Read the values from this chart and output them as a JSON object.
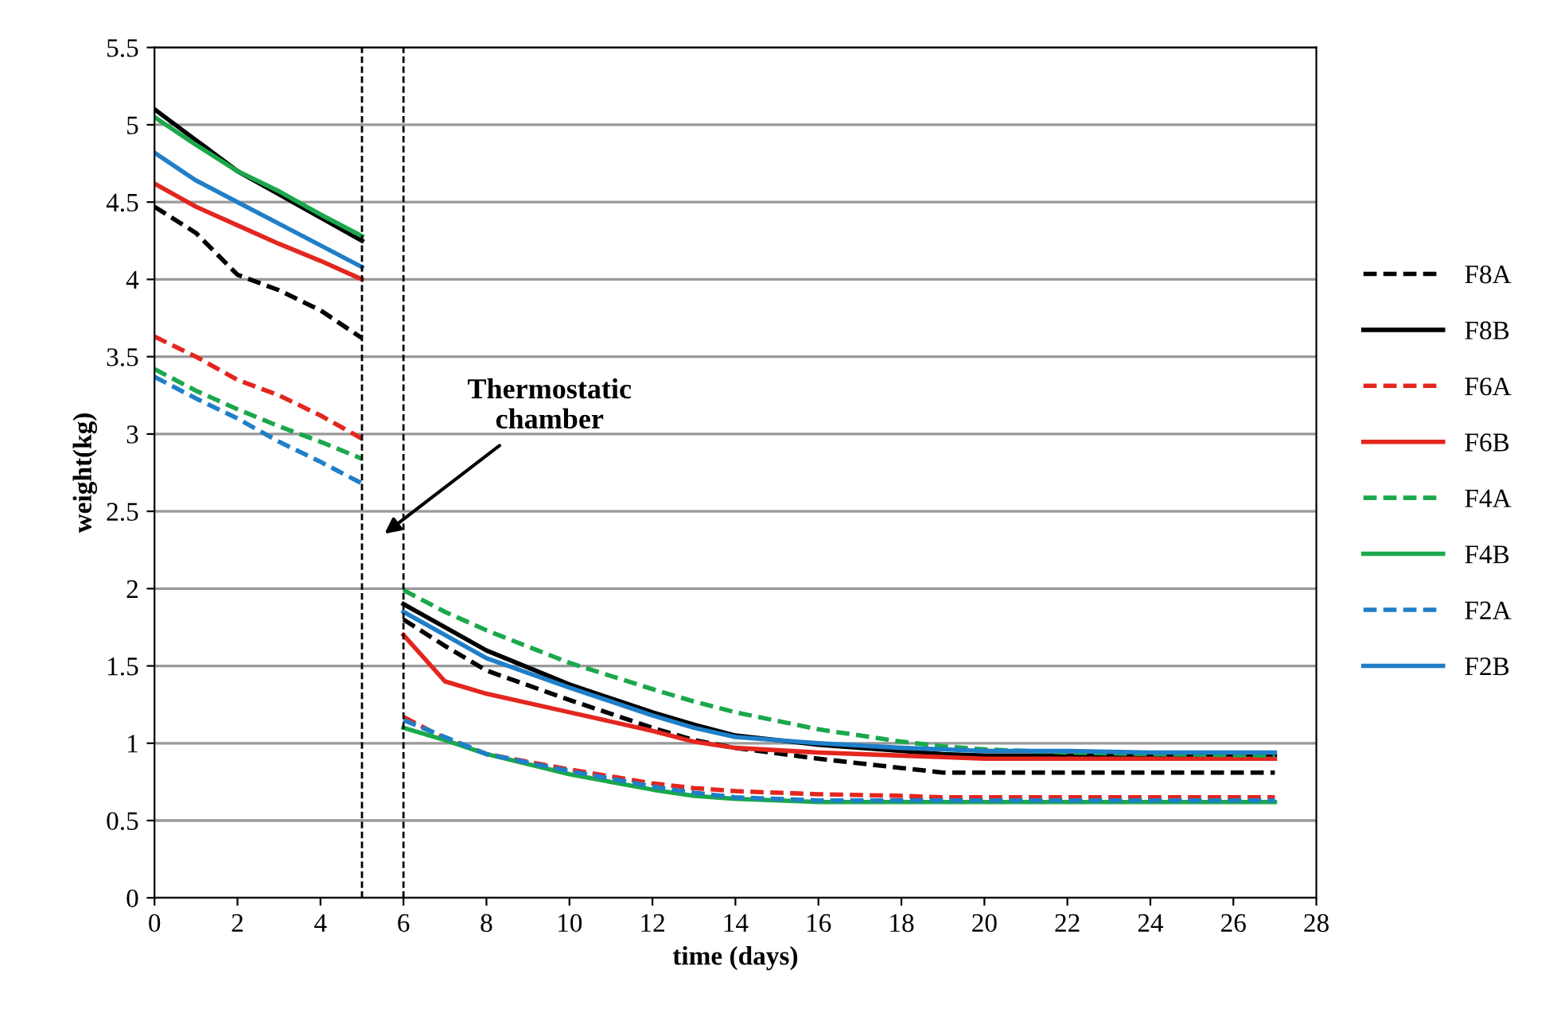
{
  "chart_data": {
    "type": "line",
    "xlabel": "time (days)",
    "ylabel": "weight(kg)",
    "x": [
      0,
      1,
      2,
      3,
      4,
      5,
      5.5,
      6,
      7,
      8,
      10,
      12,
      13,
      14,
      16,
      18,
      19,
      20,
      22,
      24,
      27
    ],
    "xlim": [
      0,
      28
    ],
    "xticks": [
      0,
      2,
      4,
      6,
      8,
      10,
      12,
      14,
      16,
      18,
      20,
      22,
      24,
      26,
      28
    ],
    "ylim": [
      0,
      5.5
    ],
    "yticks": [
      0,
      0.5,
      1,
      1.5,
      2,
      2.5,
      3,
      3.5,
      4,
      4.5,
      5,
      5.5
    ],
    "grid": "y",
    "legend": "right",
    "marker": "none",
    "ref_lines": [
      {
        "axis": "x",
        "value": 5,
        "color": "#000000",
        "line_style": "dashed"
      },
      {
        "axis": "x",
        "value": 6,
        "color": "#000000",
        "line_style": "dashed"
      }
    ],
    "annotations": [
      "Thermostatic\nchamber"
    ],
    "series": [
      {
        "name": "F8A",
        "color": "#000000",
        "line_style": "dashed",
        "values": [
          4.47,
          4.3,
          4.03,
          3.93,
          3.8,
          3.62,
          null,
          1.8,
          1.63,
          1.47,
          1.28,
          1.1,
          1.02,
          0.97,
          0.9,
          0.84,
          0.81,
          0.81,
          0.81,
          0.81,
          0.81
        ]
      },
      {
        "name": "F8B",
        "color": "#000000",
        "line_style": "solid",
        "values": [
          5.1,
          4.9,
          4.7,
          4.55,
          4.4,
          4.25,
          null,
          1.9,
          1.75,
          1.6,
          1.38,
          1.2,
          1.12,
          1.05,
          0.99,
          0.95,
          0.93,
          0.92,
          0.92,
          0.92,
          0.92
        ]
      },
      {
        "name": "F6A",
        "color": "#e3261f",
        "line_style": "dashed",
        "values": [
          3.63,
          3.5,
          3.35,
          3.25,
          3.12,
          2.97,
          null,
          1.17,
          1.03,
          0.93,
          0.83,
          0.74,
          0.71,
          0.69,
          0.67,
          0.66,
          0.65,
          0.65,
          0.65,
          0.65,
          0.65
        ]
      },
      {
        "name": "F6B",
        "color": "#e3261f",
        "line_style": "solid",
        "values": [
          4.62,
          4.47,
          4.35,
          4.23,
          4.12,
          4.0,
          null,
          1.7,
          1.4,
          1.32,
          1.2,
          1.08,
          1.01,
          0.97,
          0.94,
          0.92,
          0.91,
          0.9,
          0.9,
          0.9,
          0.9
        ]
      },
      {
        "name": "F4A",
        "color": "#1aa84b",
        "line_style": "dashed",
        "values": [
          3.42,
          3.28,
          3.16,
          3.05,
          2.95,
          2.84,
          null,
          1.99,
          1.85,
          1.73,
          1.52,
          1.35,
          1.27,
          1.2,
          1.09,
          1.01,
          0.98,
          0.96,
          0.94,
          0.93,
          0.92
        ]
      },
      {
        "name": "F4B",
        "color": "#1aa84b",
        "line_style": "solid",
        "values": [
          5.05,
          4.87,
          4.7,
          4.57,
          4.42,
          4.28,
          null,
          1.1,
          1.02,
          0.93,
          0.8,
          0.7,
          0.66,
          0.64,
          0.62,
          0.62,
          0.62,
          0.62,
          0.62,
          0.62,
          0.62
        ]
      },
      {
        "name": "F2A",
        "color": "#1f7fc8",
        "line_style": "dashed",
        "values": [
          3.37,
          3.23,
          3.1,
          2.95,
          2.82,
          2.68,
          null,
          1.15,
          1.04,
          0.93,
          0.82,
          0.72,
          0.68,
          0.65,
          0.63,
          0.63,
          0.63,
          0.63,
          0.63,
          0.63,
          0.63
        ]
      },
      {
        "name": "F2B",
        "color": "#1f7fc8",
        "line_style": "solid",
        "values": [
          4.82,
          4.64,
          4.5,
          4.36,
          4.22,
          4.08,
          null,
          1.85,
          1.7,
          1.55,
          1.36,
          1.18,
          1.1,
          1.04,
          1.0,
          0.97,
          0.96,
          0.95,
          0.95,
          0.94,
          0.94
        ]
      }
    ]
  }
}
